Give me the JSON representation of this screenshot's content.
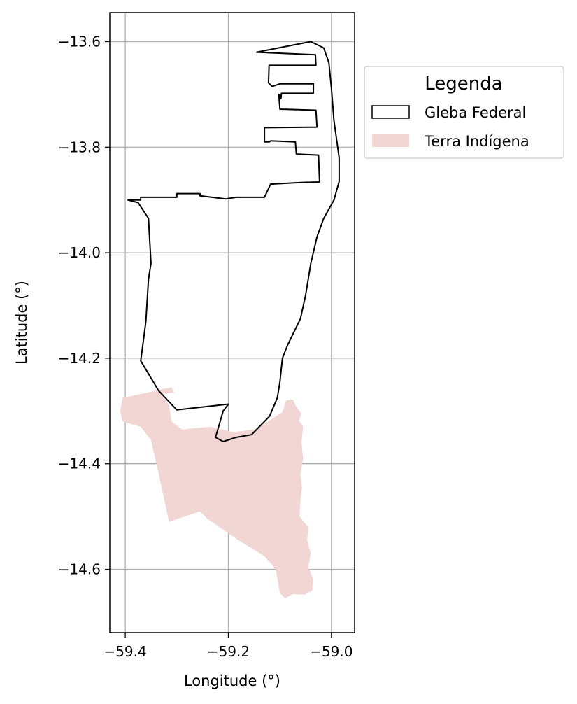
{
  "chart_data": {
    "type": "map",
    "xlabel": "Longitude (°)",
    "ylabel": "Latitude (°)",
    "xlim": [
      -59.43,
      -58.955
    ],
    "ylim": [
      -14.72,
      -13.545
    ],
    "grid": true,
    "xticks": [
      -59.4,
      -59.2,
      -59.0
    ],
    "xtick_labels": [
      "−59.4",
      "−59.2",
      "−59.0"
    ],
    "yticks": [
      -13.6,
      -13.8,
      -14.0,
      -14.2,
      -14.4,
      -14.6
    ],
    "ytick_labels": [
      "−13.6",
      "−13.8",
      "−14.0",
      "−14.2",
      "−14.4",
      "−14.6"
    ],
    "legend": {
      "title": "Legenda",
      "placement": "upper-right-outside",
      "entries": [
        {
          "label": "Gleba Federal",
          "style": "outline",
          "edge_color": "#000000"
        },
        {
          "label": "Terra Indígena",
          "style": "fill",
          "fill_color": "#f2d6d4"
        }
      ]
    },
    "series": [
      {
        "name": "Terra Indígena",
        "fill_color": "#f2d6d4",
        "coordinates": [
          [
            -59.405,
            -14.275
          ],
          [
            -59.37,
            -14.268
          ],
          [
            -59.335,
            -14.26
          ],
          [
            -59.31,
            -14.255
          ],
          [
            -59.305,
            -14.265
          ],
          [
            -59.33,
            -14.268
          ],
          [
            -59.315,
            -14.29
          ],
          [
            -59.31,
            -14.32
          ],
          [
            -59.29,
            -14.335
          ],
          [
            -59.235,
            -14.33
          ],
          [
            -59.19,
            -14.34
          ],
          [
            -59.15,
            -14.335
          ],
          [
            -59.12,
            -14.318
          ],
          [
            -59.095,
            -14.302
          ],
          [
            -59.088,
            -14.28
          ],
          [
            -59.075,
            -14.278
          ],
          [
            -59.068,
            -14.292
          ],
          [
            -59.058,
            -14.305
          ],
          [
            -59.063,
            -14.318
          ],
          [
            -59.055,
            -14.33
          ],
          [
            -59.058,
            -14.36
          ],
          [
            -59.055,
            -14.39
          ],
          [
            -59.06,
            -14.42
          ],
          [
            -59.057,
            -14.445
          ],
          [
            -59.06,
            -14.47
          ],
          [
            -59.062,
            -14.5
          ],
          [
            -59.045,
            -14.52
          ],
          [
            -59.047,
            -14.545
          ],
          [
            -59.04,
            -14.57
          ],
          [
            -59.045,
            -14.595
          ],
          [
            -59.035,
            -14.62
          ],
          [
            -59.037,
            -14.64
          ],
          [
            -59.052,
            -14.648
          ],
          [
            -59.075,
            -14.647
          ],
          [
            -59.09,
            -14.655
          ],
          [
            -59.1,
            -14.645
          ],
          [
            -59.108,
            -14.6
          ],
          [
            -59.13,
            -14.575
          ],
          [
            -59.18,
            -14.545
          ],
          [
            -59.24,
            -14.505
          ],
          [
            -59.255,
            -14.49
          ],
          [
            -59.315,
            -14.51
          ],
          [
            -59.335,
            -14.42
          ],
          [
            -59.35,
            -14.355
          ],
          [
            -59.37,
            -14.33
          ],
          [
            -59.405,
            -14.32
          ],
          [
            -59.41,
            -14.3
          ]
        ]
      },
      {
        "name": "Gleba Federal",
        "edge_color": "#000000",
        "coordinates": [
          [
            -59.395,
            -13.9
          ],
          [
            -59.37,
            -13.9
          ],
          [
            -59.37,
            -13.895
          ],
          [
            -59.3,
            -13.895
          ],
          [
            -59.3,
            -13.888
          ],
          [
            -59.255,
            -13.888
          ],
          [
            -59.255,
            -13.892
          ],
          [
            -59.205,
            -13.898
          ],
          [
            -59.185,
            -13.895
          ],
          [
            -59.13,
            -13.895
          ],
          [
            -59.118,
            -13.87
          ],
          [
            -59.06,
            -13.867
          ],
          [
            -59.023,
            -13.866
          ],
          [
            -59.025,
            -13.815
          ],
          [
            -59.068,
            -13.813
          ],
          [
            -59.07,
            -13.79
          ],
          [
            -59.118,
            -13.788
          ],
          [
            -59.12,
            -13.79
          ],
          [
            -59.13,
            -13.79
          ],
          [
            -59.13,
            -13.763
          ],
          [
            -59.028,
            -13.762
          ],
          [
            -59.03,
            -13.73
          ],
          [
            -59.1,
            -13.728
          ],
          [
            -59.102,
            -13.7
          ],
          [
            -59.098,
            -13.708
          ],
          [
            -59.097,
            -13.698
          ],
          [
            -59.035,
            -13.698
          ],
          [
            -59.035,
            -13.68
          ],
          [
            -59.1,
            -13.68
          ],
          [
            -59.115,
            -13.685
          ],
          [
            -59.122,
            -13.678
          ],
          [
            -59.121,
            -13.645
          ],
          [
            -59.03,
            -13.645
          ],
          [
            -59.031,
            -13.625
          ],
          [
            -59.145,
            -13.62
          ],
          [
            -59.04,
            -13.6
          ],
          [
            -59.015,
            -13.612
          ],
          [
            -59.005,
            -13.64
          ],
          [
            -59.0,
            -13.688
          ],
          [
            -58.995,
            -13.75
          ],
          [
            -58.985,
            -13.82
          ],
          [
            -58.985,
            -13.865
          ],
          [
            -58.995,
            -13.9
          ],
          [
            -59.015,
            -13.935
          ],
          [
            -59.028,
            -13.97
          ],
          [
            -59.04,
            -14.02
          ],
          [
            -59.05,
            -14.08
          ],
          [
            -59.06,
            -14.125
          ],
          [
            -59.085,
            -14.175
          ],
          [
            -59.095,
            -14.2
          ],
          [
            -59.1,
            -14.245
          ],
          [
            -59.105,
            -14.275
          ],
          [
            -59.12,
            -14.31
          ],
          [
            -59.155,
            -14.345
          ],
          [
            -59.185,
            -14.35
          ],
          [
            -59.21,
            -14.358
          ],
          [
            -59.225,
            -14.35
          ],
          [
            -59.21,
            -14.3
          ],
          [
            -59.2,
            -14.287
          ],
          [
            -59.3,
            -14.298
          ],
          [
            -59.335,
            -14.262
          ],
          [
            -59.37,
            -14.205
          ],
          [
            -59.36,
            -14.13
          ],
          [
            -59.355,
            -14.05
          ],
          [
            -59.35,
            -14.02
          ],
          [
            -59.355,
            -13.935
          ],
          [
            -59.375,
            -13.905
          ],
          [
            -59.395,
            -13.9
          ]
        ]
      }
    ]
  }
}
